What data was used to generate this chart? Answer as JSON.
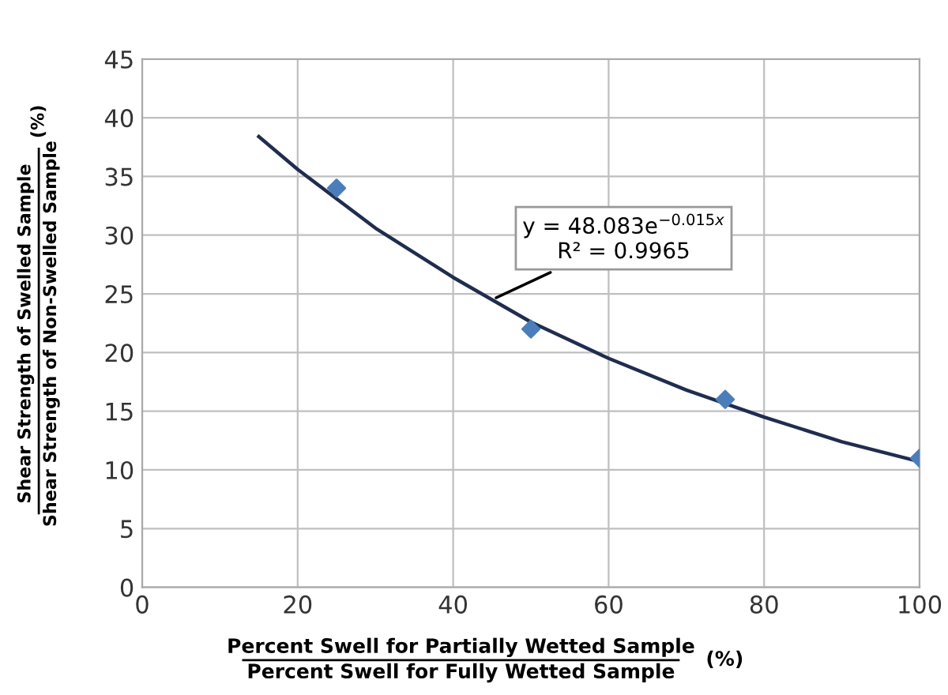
{
  "chart_data": {
    "type": "scatter",
    "xlabel": "Percent Swell for Partially Wetted Sample\nPercent Swell for Fully Wetted Sample\n(%)",
    "ylabel": "Shear Strength of Swelled Sample\nShear Strength of Non-Swelled Sample\n(%)",
    "series": [
      {
        "color": "#4a7ebb",
        "marker": "diamond",
        "x": [
          25,
          50,
          75,
          100
        ],
        "values": [
          34,
          22,
          16,
          11
        ]
      },
      {
        "type": "line",
        "color": "#1f2d4f",
        "marker": "none",
        "x": [
          15,
          20,
          30,
          40,
          50,
          60,
          70,
          80,
          90,
          100
        ],
        "values": [
          38.4,
          35.6,
          30.6,
          26.4,
          22.6,
          19.5,
          16.8,
          14.5,
          12.4,
          10.7
        ]
      }
    ],
    "annotations": [
      {
        "text": "y = 48.083e$^{−0.015x}$\nR² = 0.9965",
        "x": 45,
        "y": 24.5
      }
    ],
    "xlim": [
      0,
      100
    ],
    "xticks": [
      0,
      20,
      40,
      60,
      80,
      100
    ],
    "ylim": [
      0,
      45
    ],
    "yticks": [
      0,
      5,
      10,
      15,
      20,
      25,
      30,
      35,
      40,
      45
    ],
    "grid": true,
    "legend": false
  }
}
